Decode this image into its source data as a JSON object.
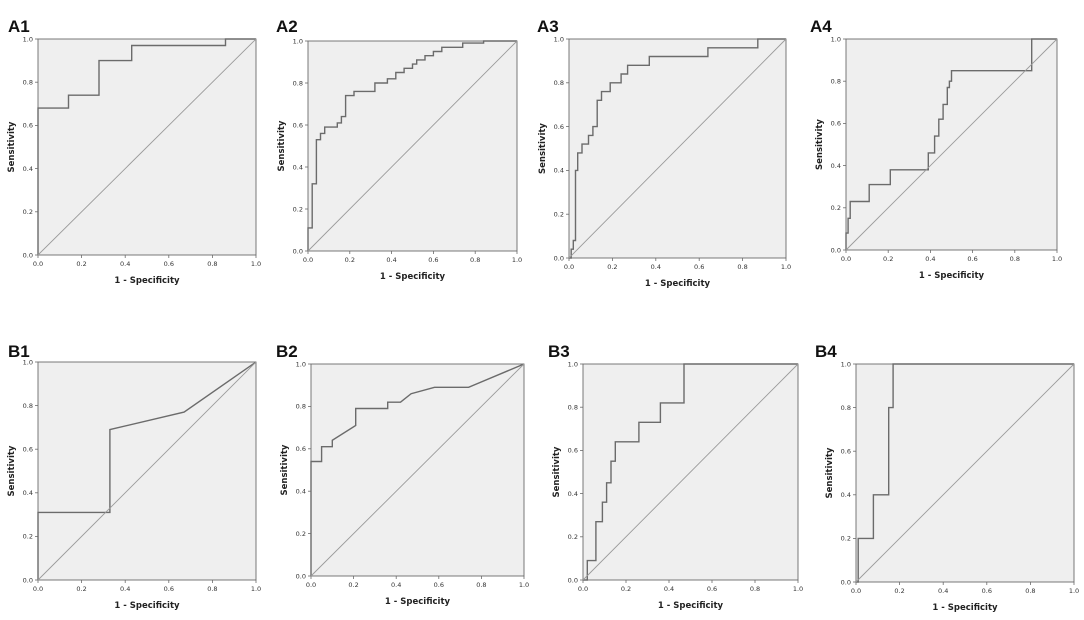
{
  "chart_data": [
    {
      "panel": "A1",
      "type": "line",
      "xlabel": "1 - Specificity",
      "ylabel": "Sensitivity",
      "xlim": [
        0,
        1
      ],
      "ylim": [
        0,
        1
      ],
      "xticks": [
        "0.0",
        "0.2",
        "0.4",
        "0.6",
        "0.8",
        "1.0"
      ],
      "yticks": [
        "0.0",
        "0.2",
        "0.4",
        "0.6",
        "0.8",
        "1.0"
      ],
      "series": [
        {
          "name": "ROC",
          "x": [
            0,
            0,
            0.14,
            0.14,
            0.28,
            0.28,
            0.43,
            0.43,
            0.86,
            0.86,
            1.0
          ],
          "y": [
            0,
            0.68,
            0.68,
            0.74,
            0.74,
            0.9,
            0.9,
            0.97,
            0.97,
            1.0,
            1.0
          ]
        },
        {
          "name": "Reference",
          "x": [
            0,
            1
          ],
          "y": [
            0,
            1
          ]
        }
      ]
    },
    {
      "panel": "A2",
      "type": "line",
      "xlabel": "1 - Specificity",
      "ylabel": "Sensitivity",
      "xlim": [
        0,
        1
      ],
      "ylim": [
        0,
        1
      ],
      "xticks": [
        "0.0",
        "0.2",
        "0.4",
        "0.6",
        "0.8",
        "1.0"
      ],
      "yticks": [
        "0.0",
        "0.2",
        "0.4",
        "0.6",
        "0.8",
        "1.0"
      ],
      "series": [
        {
          "name": "ROC",
          "x": [
            0,
            0,
            0.02,
            0.02,
            0.04,
            0.04,
            0.06,
            0.06,
            0.08,
            0.08,
            0.14,
            0.14,
            0.16,
            0.16,
            0.18,
            0.18,
            0.22,
            0.22,
            0.32,
            0.32,
            0.38,
            0.38,
            0.42,
            0.42,
            0.46,
            0.46,
            0.5,
            0.5,
            0.52,
            0.52,
            0.56,
            0.56,
            0.6,
            0.6,
            0.64,
            0.64,
            0.74,
            0.74,
            0.84,
            0.84,
            1.0
          ],
          "y": [
            0,
            0.11,
            0.11,
            0.32,
            0.32,
            0.53,
            0.53,
            0.56,
            0.56,
            0.59,
            0.59,
            0.61,
            0.61,
            0.64,
            0.64,
            0.74,
            0.74,
            0.76,
            0.76,
            0.8,
            0.8,
            0.82,
            0.82,
            0.85,
            0.85,
            0.87,
            0.87,
            0.89,
            0.89,
            0.91,
            0.91,
            0.93,
            0.93,
            0.95,
            0.95,
            0.97,
            0.97,
            0.99,
            0.99,
            1.0,
            1.0
          ]
        },
        {
          "name": "Reference",
          "x": [
            0,
            1
          ],
          "y": [
            0,
            1
          ]
        }
      ]
    },
    {
      "panel": "A3",
      "type": "line",
      "xlabel": "1 - Specificity",
      "ylabel": "Sensitivity",
      "xlim": [
        0,
        1
      ],
      "ylim": [
        0,
        1
      ],
      "xticks": [
        "0.0",
        "0.2",
        "0.4",
        "0.6",
        "0.8",
        "1.0"
      ],
      "yticks": [
        "0.0",
        "0.2",
        "0.4",
        "0.6",
        "0.8",
        "1.0"
      ],
      "series": [
        {
          "name": "ROC",
          "x": [
            0,
            0.01,
            0.01,
            0.02,
            0.02,
            0.03,
            0.03,
            0.04,
            0.04,
            0.06,
            0.06,
            0.09,
            0.09,
            0.11,
            0.11,
            0.13,
            0.13,
            0.15,
            0.15,
            0.19,
            0.19,
            0.24,
            0.24,
            0.27,
            0.27,
            0.37,
            0.37,
            0.64,
            0.64,
            0.66,
            0.66,
            0.87,
            0.87,
            0.89,
            0.89,
            1.0
          ],
          "y": [
            0,
            0,
            0.04,
            0.04,
            0.08,
            0.08,
            0.4,
            0.4,
            0.48,
            0.48,
            0.52,
            0.52,
            0.56,
            0.56,
            0.6,
            0.6,
            0.72,
            0.72,
            0.76,
            0.76,
            0.8,
            0.8,
            0.84,
            0.84,
            0.88,
            0.88,
            0.92,
            0.92,
            0.96,
            0.96,
            0.96,
            0.96,
            1.0,
            1.0,
            1.0,
            1.0
          ]
        },
        {
          "name": "Reference",
          "x": [
            0,
            1
          ],
          "y": [
            0,
            1
          ]
        }
      ]
    },
    {
      "panel": "A4",
      "type": "line",
      "xlabel": "1 - Specificity",
      "ylabel": "Sensitivity",
      "xlim": [
        0,
        1
      ],
      "ylim": [
        0,
        1
      ],
      "xticks": [
        "0.0",
        "0.2",
        "0.4",
        "0.6",
        "0.8",
        "1.0"
      ],
      "yticks": [
        "0.0",
        "0.2",
        "0.4",
        "0.6",
        "0.8",
        "1.0"
      ],
      "series": [
        {
          "name": "ROC",
          "x": [
            0,
            0,
            0.01,
            0.01,
            0.02,
            0.02,
            0.11,
            0.11,
            0.21,
            0.21,
            0.39,
            0.39,
            0.42,
            0.42,
            0.44,
            0.44,
            0.46,
            0.46,
            0.48,
            0.48,
            0.49,
            0.49,
            0.5,
            0.5,
            0.88,
            0.88,
            1.0
          ],
          "y": [
            0,
            0.08,
            0.08,
            0.15,
            0.15,
            0.23,
            0.23,
            0.31,
            0.31,
            0.38,
            0.38,
            0.46,
            0.46,
            0.54,
            0.54,
            0.62,
            0.62,
            0.69,
            0.69,
            0.77,
            0.77,
            0.8,
            0.8,
            0.85,
            0.85,
            1.0,
            1.0
          ]
        },
        {
          "name": "Reference",
          "x": [
            0,
            1
          ],
          "y": [
            0,
            1
          ]
        }
      ]
    },
    {
      "panel": "B1",
      "type": "line",
      "xlabel": "1 - Specificity",
      "ylabel": "Sensitivity",
      "xlim": [
        0,
        1
      ],
      "ylim": [
        0,
        1
      ],
      "xticks": [
        "0.0",
        "0.2",
        "0.4",
        "0.6",
        "0.8",
        "1.0"
      ],
      "yticks": [
        "0.0",
        "0.2",
        "0.4",
        "0.6",
        "0.8",
        "1.0"
      ],
      "series": [
        {
          "name": "ROC",
          "x": [
            0,
            0,
            0.33,
            0.33,
            0.67,
            1.0
          ],
          "y": [
            0,
            0.31,
            0.31,
            0.69,
            0.77,
            1.0
          ]
        },
        {
          "name": "Reference",
          "x": [
            0,
            1
          ],
          "y": [
            0,
            1
          ]
        }
      ]
    },
    {
      "panel": "B2",
      "type": "line",
      "xlabel": "1 - Specificity",
      "ylabel": "Sensitivity",
      "xlim": [
        0,
        1
      ],
      "ylim": [
        0,
        1
      ],
      "xticks": [
        "0.0",
        "0.2",
        "0.4",
        "0.6",
        "0.8",
        "1.0"
      ],
      "yticks": [
        "0.0",
        "0.2",
        "0.4",
        "0.6",
        "0.8",
        "1.0"
      ],
      "series": [
        {
          "name": "ROC",
          "x": [
            0,
            0,
            0.05,
            0.05,
            0.1,
            0.1,
            0.21,
            0.21,
            0.36,
            0.36,
            0.42,
            0.47,
            0.58,
            0.74,
            1.0
          ],
          "y": [
            0,
            0.54,
            0.54,
            0.61,
            0.61,
            0.64,
            0.71,
            0.79,
            0.79,
            0.82,
            0.82,
            0.86,
            0.89,
            0.89,
            1.0
          ]
        },
        {
          "name": "Reference",
          "x": [
            0,
            1
          ],
          "y": [
            0,
            1
          ]
        }
      ]
    },
    {
      "panel": "B3",
      "type": "line",
      "xlabel": "1 - Specificity",
      "ylabel": "Sensitivity",
      "xlim": [
        0,
        1
      ],
      "ylim": [
        0,
        1
      ],
      "xticks": [
        "0.0",
        "0.2",
        "0.4",
        "0.6",
        "0.8",
        "1.0"
      ],
      "yticks": [
        "0.0",
        "0.2",
        "0.4",
        "0.6",
        "0.8",
        "1.0"
      ],
      "series": [
        {
          "name": "ROC",
          "x": [
            0,
            0.02,
            0.02,
            0.06,
            0.06,
            0.09,
            0.09,
            0.11,
            0.11,
            0.13,
            0.13,
            0.15,
            0.15,
            0.26,
            0.26,
            0.36,
            0.36,
            0.38,
            0.38,
            0.47,
            0.47,
            1.0
          ],
          "y": [
            0,
            0,
            0.09,
            0.09,
            0.27,
            0.27,
            0.36,
            0.36,
            0.45,
            0.45,
            0.55,
            0.55,
            0.64,
            0.64,
            0.73,
            0.73,
            0.82,
            0.82,
            0.82,
            0.82,
            1.0,
            1.0
          ]
        },
        {
          "name": "Reference",
          "x": [
            0,
            1
          ],
          "y": [
            0,
            1
          ]
        }
      ]
    },
    {
      "panel": "B4",
      "type": "line",
      "xlabel": "1 - Specificity",
      "ylabel": "Sensitivity",
      "xlim": [
        0,
        1
      ],
      "ylim": [
        0,
        1
      ],
      "xticks": [
        "0.0",
        "0.2",
        "0.4",
        "0.6",
        "0.8",
        "1.0"
      ],
      "yticks": [
        "0.0",
        "0.2",
        "0.4",
        "0.6",
        "0.8",
        "1.0"
      ],
      "series": [
        {
          "name": "ROC",
          "x": [
            0,
            0.01,
            0.01,
            0.08,
            0.08,
            0.15,
            0.15,
            0.17,
            0.17,
            1.0
          ],
          "y": [
            0,
            0,
            0.2,
            0.2,
            0.4,
            0.4,
            0.8,
            0.8,
            1.0,
            1.0
          ]
        },
        {
          "name": "Reference",
          "x": [
            0,
            1
          ],
          "y": [
            0,
            1
          ]
        }
      ]
    }
  ]
}
